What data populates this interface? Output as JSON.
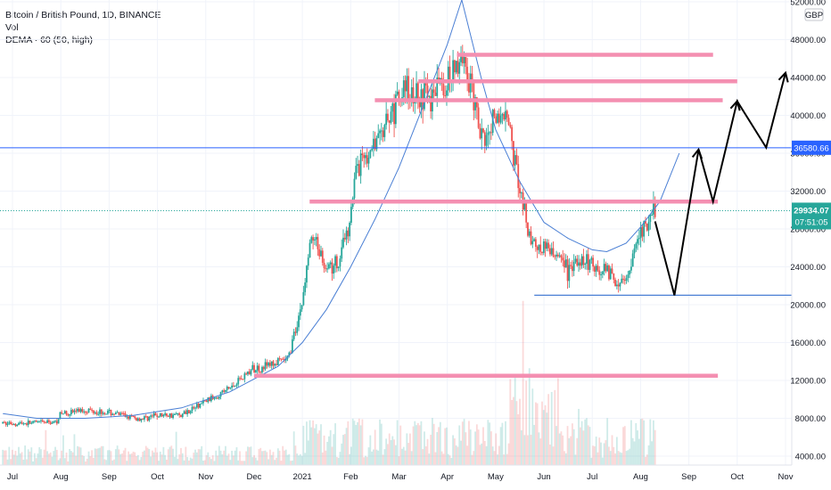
{
  "legend": {
    "symbol": "Bitcoin / British Pound, 1D, BINANCE",
    "volume": "Vol",
    "indicator": "DEMA · 60 (50, high)"
  },
  "currency": "GBP",
  "colors": {
    "up": "#26a69a",
    "down": "#ef5350",
    "resistance": "#f48fb1",
    "trend": "#4a7fd4",
    "projection": "#000000",
    "price_badge": "#26a69a",
    "level_badge": "#2962ff"
  },
  "chart_data": {
    "type": "candlestick",
    "title": "Bitcoin / British Pound, 1D, BINANCE",
    "y_axis": {
      "ticks": [
        52000,
        48000,
        44000,
        40000,
        36000,
        32000,
        28000,
        24000,
        20000,
        16000,
        12000,
        8000,
        4000
      ],
      "tick_labels": [
        "52000.00",
        "48000.00",
        "44000.00",
        "40000.00",
        "36000.00",
        "32000.00",
        "28000.00",
        "24000.00",
        "20000.00",
        "16000.00",
        "12000.00",
        "8000.00",
        "4000.00"
      ],
      "range": [
        3200,
        53600
      ]
    },
    "x_axis": {
      "labels": [
        {
          "label": "Jul",
          "m": 0
        },
        {
          "label": "Aug",
          "m": 1
        },
        {
          "label": "Sep",
          "m": 2
        },
        {
          "label": "Oct",
          "m": 3
        },
        {
          "label": "Nov",
          "m": 4
        },
        {
          "label": "Dec",
          "m": 5
        },
        {
          "label": "2021",
          "m": 6
        },
        {
          "label": "Feb",
          "m": 7
        },
        {
          "label": "Mar",
          "m": 8
        },
        {
          "label": "Apr",
          "m": 9
        },
        {
          "label": "May",
          "m": 10
        },
        {
          "label": "Jun",
          "m": 11
        },
        {
          "label": "Jul",
          "m": 12
        },
        {
          "label": "Aug",
          "m": 13
        },
        {
          "label": "Sep",
          "m": 14
        },
        {
          "label": "Oct",
          "m": 15
        },
        {
          "label": "Nov",
          "m": 16
        }
      ],
      "range_months": [
        -0.2,
        16.9
      ]
    },
    "price_path": [
      [
        -0.2,
        7450
      ],
      [
        0.3,
        7500
      ],
      [
        0.9,
        7600
      ],
      [
        1.0,
        8500
      ],
      [
        1.5,
        8900
      ],
      [
        2.0,
        8600
      ],
      [
        2.3,
        8300
      ],
      [
        2.6,
        7900
      ],
      [
        3.0,
        8300
      ],
      [
        3.5,
        8400
      ],
      [
        4.0,
        9800
      ],
      [
        4.5,
        11200
      ],
      [
        4.8,
        12600
      ],
      [
        5.0,
        13200
      ],
      [
        5.3,
        13600
      ],
      [
        5.7,
        14200
      ],
      [
        6.0,
        20400
      ],
      [
        6.2,
        27800
      ],
      [
        6.5,
        23800
      ],
      [
        6.7,
        24200
      ],
      [
        6.9,
        26700
      ],
      [
        7.1,
        34000
      ],
      [
        7.5,
        36600
      ],
      [
        7.8,
        39400
      ],
      [
        8.1,
        42800
      ],
      [
        8.5,
        42000
      ],
      [
        8.8,
        42400
      ],
      [
        9.1,
        44200
      ],
      [
        9.3,
        45900
      ],
      [
        9.5,
        43200
      ],
      [
        9.7,
        37200
      ],
      [
        10.0,
        40200
      ],
      [
        10.2,
        40500
      ],
      [
        10.5,
        32600
      ],
      [
        10.7,
        26800
      ],
      [
        11.0,
        26100
      ],
      [
        11.3,
        25000
      ],
      [
        11.5,
        23400
      ],
      [
        11.8,
        24800
      ],
      [
        12.1,
        24100
      ],
      [
        12.4,
        23000
      ],
      [
        12.7,
        22300
      ],
      [
        12.9,
        26200
      ],
      [
        13.1,
        28600
      ],
      [
        13.3,
        29934
      ]
    ],
    "last_price": 29934.07,
    "last_price_label": "29934.07",
    "countdown_label": "07:51:05",
    "horizontal_level": 36580.66,
    "horizontal_level_label": "36580.66",
    "resistance_lines": [
      {
        "from": 9.2,
        "to": 14.5,
        "y": 46400
      },
      {
        "from": 8.4,
        "to": 15.0,
        "y": 43600
      },
      {
        "from": 7.5,
        "to": 14.7,
        "y": 41600
      },
      {
        "from": 6.15,
        "to": 14.6,
        "y": 30900
      },
      {
        "from": 5.0,
        "to": 14.6,
        "y": 12500
      }
    ],
    "support_line": {
      "from": 10.8,
      "to": 16.8,
      "y": 21000
    },
    "projection_path": [
      [
        13.3,
        28800
      ],
      [
        13.7,
        21000
      ],
      [
        14.2,
        36400
      ],
      [
        14.5,
        30900
      ],
      [
        15.0,
        41500
      ],
      [
        15.6,
        36600
      ],
      [
        16.0,
        44500
      ]
    ],
    "rounding_curve": [
      [
        -0.2,
        8500
      ],
      [
        0.5,
        8000
      ],
      [
        1.5,
        8000
      ],
      [
        2.5,
        8300
      ],
      [
        3.5,
        9100
      ],
      [
        4.5,
        10800
      ],
      [
        5.5,
        13500
      ],
      [
        6.0,
        16000
      ],
      [
        6.5,
        19500
      ],
      [
        7.0,
        24000
      ],
      [
        7.5,
        29000
      ],
      [
        8.0,
        34500
      ],
      [
        8.5,
        41000
      ],
      [
        9.0,
        47500
      ],
      [
        9.3,
        52200
      ],
      [
        9.7,
        44000
      ],
      [
        10.0,
        38500
      ],
      [
        10.5,
        33000
      ],
      [
        11.0,
        28700
      ],
      [
        11.5,
        27000
      ],
      [
        12.0,
        25800
      ],
      [
        12.3,
        25600
      ],
      [
        12.7,
        26500
      ],
      [
        13.0,
        28200
      ],
      [
        13.4,
        30900
      ],
      [
        13.8,
        36000
      ]
    ]
  }
}
